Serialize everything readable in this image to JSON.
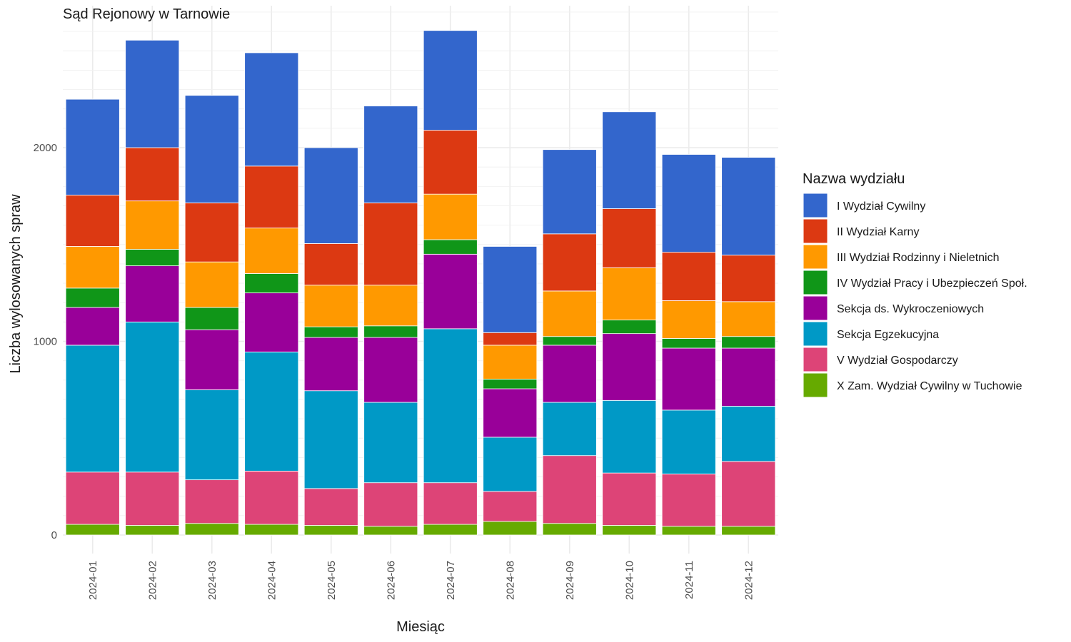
{
  "chart_data": {
    "type": "bar",
    "stacked": true,
    "title": "Sąd Rejonowy w Tarnowie",
    "xlabel": "Miesiąc",
    "ylabel": "Liczba wylosowanych spraw",
    "ylim": [
      0,
      2700
    ],
    "yticks": [
      0,
      1000,
      2000
    ],
    "grid": true,
    "legend_title": "Nazwa wydziału",
    "legend_position": "right",
    "categories": [
      "2024-01",
      "2024-02",
      "2024-03",
      "2024-04",
      "2024-05",
      "2024-06",
      "2024-07",
      "2024-08",
      "2024-09",
      "2024-10",
      "2024-11",
      "2024-12"
    ],
    "series": [
      {
        "name": "X Zam. Wydział Cywilny w Tuchowie",
        "color": "#66aa00",
        "values": [
          55,
          50,
          60,
          55,
          50,
          45,
          55,
          70,
          60,
          50,
          45,
          45
        ]
      },
      {
        "name": "V Wydział Gospodarczy",
        "color": "#dd4477",
        "values": [
          270,
          275,
          225,
          275,
          190,
          225,
          215,
          155,
          350,
          270,
          270,
          335
        ]
      },
      {
        "name": "Sekcja Egzekucyjna",
        "color": "#0099c6",
        "values": [
          655,
          775,
          465,
          615,
          505,
          415,
          795,
          280,
          275,
          375,
          330,
          285
        ]
      },
      {
        "name": "Sekcja ds. Wykroczeniowych",
        "color": "#990099",
        "values": [
          195,
          290,
          310,
          305,
          275,
          335,
          385,
          250,
          295,
          345,
          320,
          300
        ]
      },
      {
        "name": "IV Wydział Pracy i Ubezpieczeń Społ.",
        "color": "#109618",
        "values": [
          100,
          85,
          115,
          100,
          55,
          60,
          75,
          50,
          45,
          70,
          50,
          60
        ]
      },
      {
        "name": "III Wydział Rodzinny i Nieletnich",
        "color": "#ff9900",
        "values": [
          215,
          250,
          235,
          235,
          215,
          210,
          235,
          175,
          235,
          270,
          195,
          180
        ]
      },
      {
        "name": "II Wydział Karny",
        "color": "#dc3912",
        "values": [
          265,
          275,
          305,
          320,
          215,
          425,
          330,
          65,
          295,
          305,
          250,
          240
        ]
      },
      {
        "name": "I Wydział Cywilny",
        "color": "#3366cc",
        "values": [
          495,
          555,
          555,
          585,
          495,
          500,
          515,
          445,
          435,
          500,
          505,
          505
        ]
      }
    ]
  }
}
